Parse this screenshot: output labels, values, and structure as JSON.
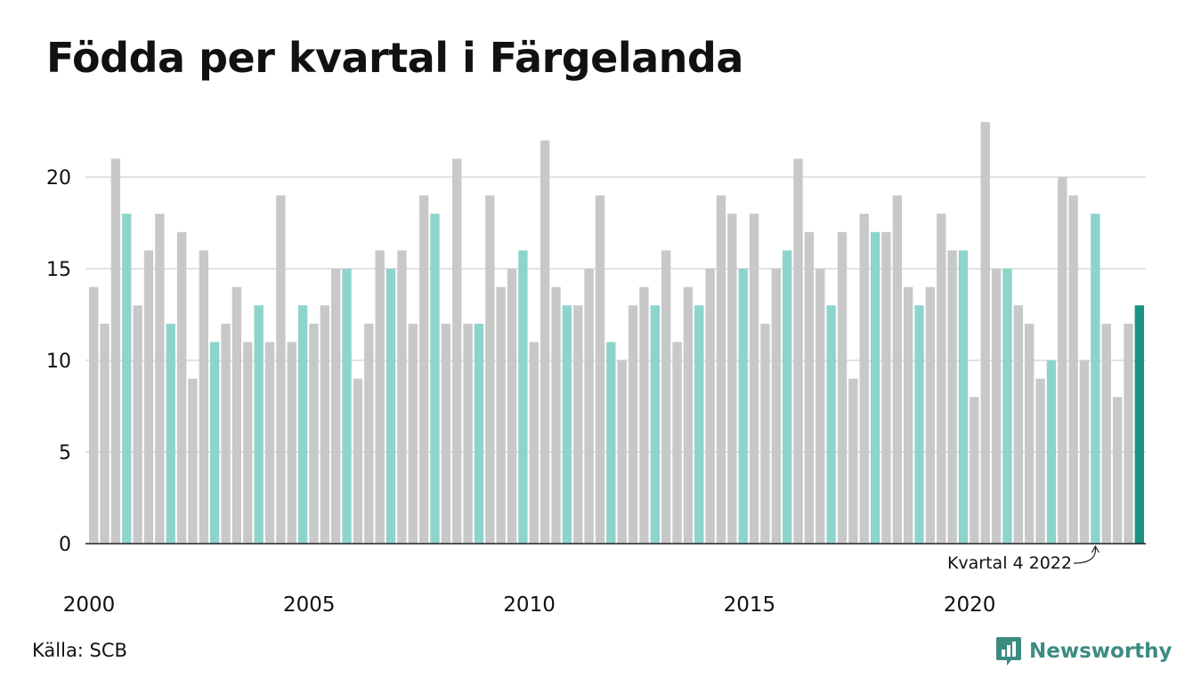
{
  "title": "Födda per kvartal i Färgelanda",
  "source": "Källa: SCB",
  "brand": "Newsworthy",
  "colors": {
    "regular": "#c8c8c8",
    "q4": "#8dd4cc",
    "latest": "#1a9384",
    "grid": "#e3e3e3",
    "axis": "#222222",
    "brand": "#3c8c82"
  },
  "chart_data": {
    "type": "bar",
    "title": "Födda per kvartal i Färgelanda",
    "ylim": [
      0,
      23
    ],
    "yticks": [
      0,
      5,
      10,
      15,
      20
    ],
    "xtick_labels": [
      "2000",
      "2005",
      "2010",
      "2015",
      "2020"
    ],
    "grid": true,
    "highlight": "fourth quarter of each year; latest quarter in dark teal",
    "start_year": 2000,
    "values": [
      14,
      12,
      21,
      18,
      13,
      16,
      18,
      12,
      17,
      9,
      16,
      11,
      12,
      14,
      11,
      13,
      11,
      19,
      11,
      13,
      12,
      13,
      15,
      15,
      9,
      12,
      16,
      15,
      16,
      12,
      19,
      18,
      12,
      21,
      12,
      12,
      19,
      14,
      15,
      16,
      11,
      22,
      14,
      13,
      13,
      15,
      19,
      11,
      10,
      13,
      14,
      13,
      16,
      11,
      14,
      13,
      15,
      19,
      18,
      15,
      18,
      12,
      15,
      16,
      21,
      17,
      15,
      13,
      17,
      9,
      18,
      17,
      17,
      19,
      14,
      13,
      14,
      18,
      16,
      16,
      8,
      23,
      15,
      15,
      13,
      12,
      9,
      10,
      20,
      19,
      10,
      18,
      12,
      8,
      12,
      13
    ],
    "annotation": {
      "text": "Kvartal 4 2022",
      "target_index": 91
    }
  }
}
